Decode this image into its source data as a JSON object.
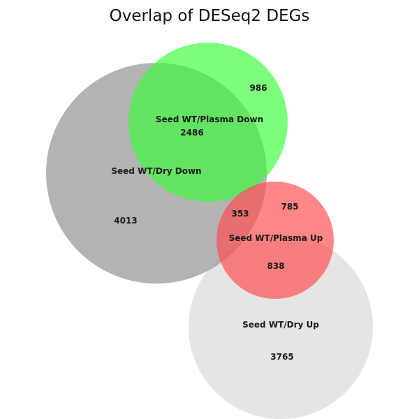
{
  "title": "Overlap of DESeq2 DEGs",
  "sets": {
    "dry_down": {
      "name": "Seed WT/Dry Down",
      "color": "#9e9e9e"
    },
    "plasma_down": {
      "name": "Seed WT/Plasma Down",
      "color": "#33ff33"
    },
    "plasma_up": {
      "name": "Seed WT/Plasma Up",
      "color": "#ff4d4d"
    },
    "dry_up": {
      "name": "Seed WT/Dry Up",
      "color": "#dedede"
    }
  },
  "counts": {
    "dry_down_only": "4013",
    "plasma_down_only": "986",
    "dry_down_and_plasma_down": "2486",
    "dry_down_and_plasma_up": "353",
    "plasma_up_only": "785",
    "plasma_up_and_dry_up": "838",
    "dry_up_only": "3765"
  }
}
